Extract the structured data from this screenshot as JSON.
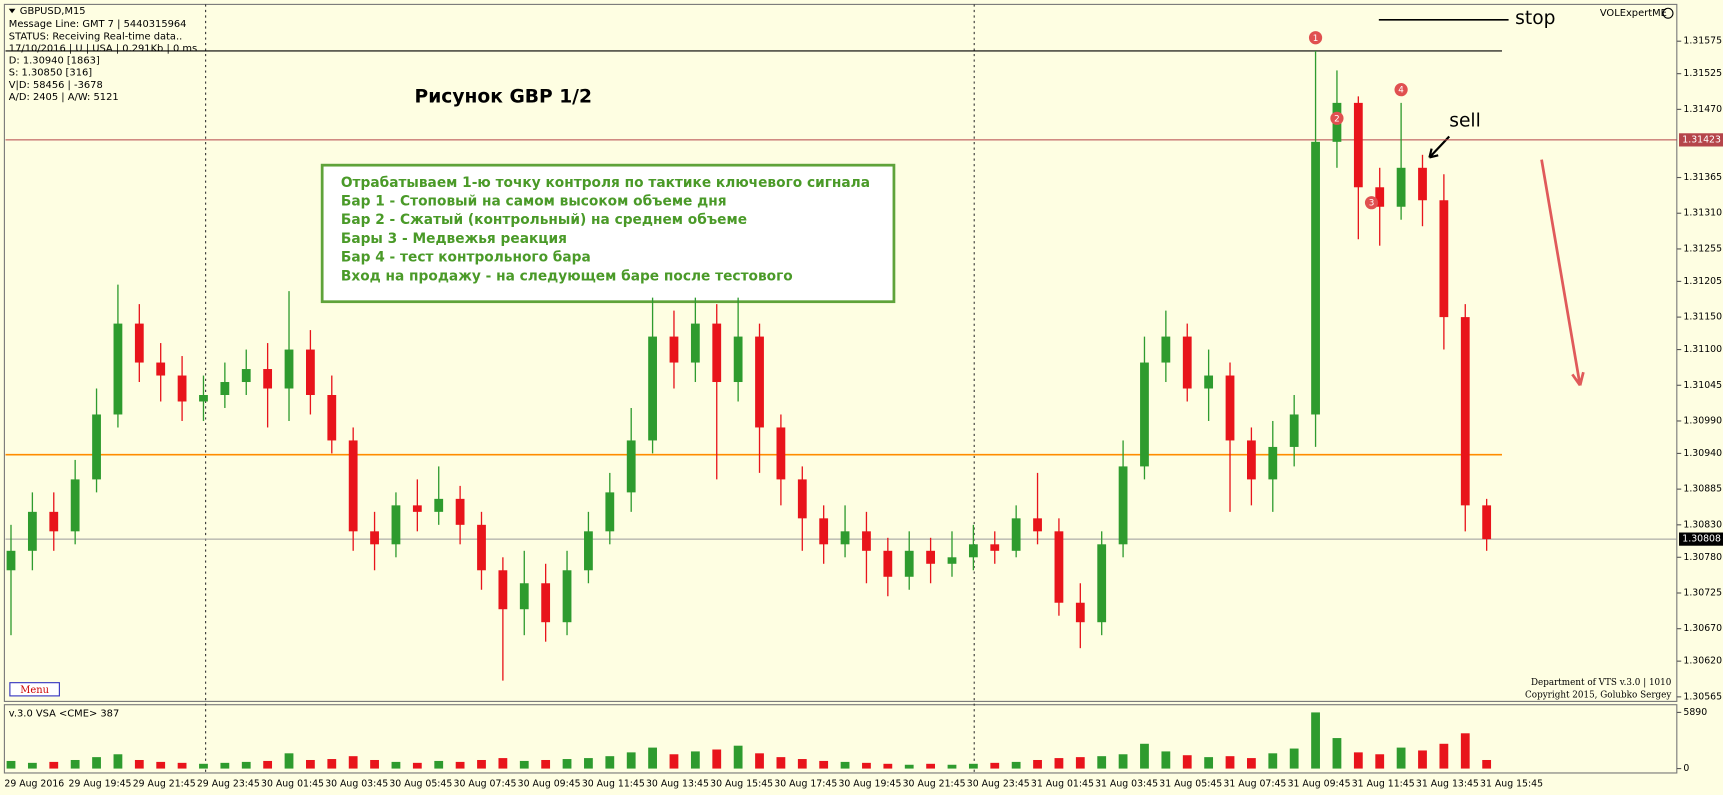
{
  "header": {
    "symbol": "GBPUSD,M15",
    "lines": [
      "Message Line: GMT 7 | 5440315964",
      "STATUS:  Receiving Real-time data..",
      "17/10/2016 | U | USA | 0.291Kb | 0 ms",
      "D: 1.30940  [1863]",
      "S: 1.30850  [316]",
      "V|D: 58456 | -3678",
      "A/D: 2405 | A/W: 5121"
    ]
  },
  "brand": "VOLExpertME",
  "annotations": {
    "title": "Рисунок GBP  1/2",
    "note": [
      "Отрабатываем 1-ю точку контроля по тактике ключевого сигнала",
      "Бар 1 - Стоповый на самом высоком объеме дня",
      "Бар 2 - Сжатый (контрольный) на среднем объеме",
      "Бары 3 - Медвежья реакция",
      "Бар 4 - тест контрольного бара",
      "Вход на продажу - на следующем баре после тестового"
    ],
    "stop": "stop",
    "sell": "sell",
    "markers": [
      "1",
      "2",
      "3",
      "4"
    ]
  },
  "footer": {
    "menu": "Menu",
    "credits": [
      "Department of VTS  v.3.0 | 1010",
      "Copyright 2015, Golubko Sergey"
    ]
  },
  "chart_data": {
    "type": "candlestick",
    "categories": [
      "29 Aug 2016",
      null,
      null,
      "29 Aug 19:45",
      null,
      null,
      "29 Aug 21:45",
      null,
      null,
      "29 Aug 23:45",
      null,
      null,
      "30 Aug 01:45",
      null,
      null,
      "30 Aug 03:45",
      null,
      null,
      "30 Aug 05:45",
      null,
      null,
      "30 Aug 07:45",
      null,
      null,
      "30 Aug 09:45",
      null,
      null,
      "30 Aug 11:45",
      null,
      null,
      "30 Aug 13:45",
      null,
      null,
      "30 Aug 15:45",
      null,
      null,
      "30 Aug 17:45",
      null,
      null,
      "30 Aug 19:45",
      null,
      null,
      "30 Aug 21:45",
      null,
      null,
      "30 Aug 23:45",
      null,
      null,
      "31 Aug 01:45",
      null,
      null,
      "31 Aug 03:45",
      null,
      null,
      "31 Aug 05:45",
      null,
      null,
      "31 Aug 07:45",
      null,
      null,
      "31 Aug 09:45",
      null,
      null,
      "31 Aug 11:45",
      null,
      null,
      "31 Aug 13:45",
      null,
      null,
      "31 Aug 15:45"
    ],
    "candles": {
      "open": [
        1.3076,
        1.3079,
        1.3085,
        1.3082,
        1.309,
        1.31,
        1.3114,
        1.3108,
        1.3106,
        1.3102,
        1.3103,
        1.3105,
        1.3107,
        1.3104,
        1.311,
        1.3103,
        1.3096,
        1.3082,
        1.308,
        1.3086,
        1.3085,
        1.3087,
        1.3083,
        1.3076,
        1.307,
        1.3074,
        1.3068,
        1.3076,
        1.3082,
        1.3088,
        1.3096,
        1.3112,
        1.3108,
        1.3114,
        1.3105,
        1.3112,
        1.3098,
        1.309,
        1.3084,
        1.308,
        1.3082,
        1.3079,
        1.3075,
        1.3079,
        1.3077,
        1.3078,
        1.308,
        1.3079,
        1.3084,
        1.3082,
        1.3071,
        1.3068,
        1.308,
        1.3092,
        1.3108,
        1.3112,
        1.3104,
        1.3106,
        1.3096,
        1.309,
        1.3095,
        1.31,
        1.3142,
        1.3148,
        1.3135,
        1.3132,
        1.3138,
        1.3133,
        1.3115,
        1.3086
      ],
      "high": [
        1.3083,
        1.3088,
        1.3088,
        1.3093,
        1.3104,
        1.312,
        1.3117,
        1.3111,
        1.3109,
        1.3106,
        1.3108,
        1.311,
        1.3111,
        1.3119,
        1.3113,
        1.3106,
        1.3098,
        1.3085,
        1.3088,
        1.309,
        1.3092,
        1.3089,
        1.3085,
        1.3078,
        1.3079,
        1.3077,
        1.3079,
        1.3085,
        1.3091,
        1.3101,
        1.3118,
        1.3116,
        1.3118,
        1.3117,
        1.3118,
        1.3114,
        1.31,
        1.3092,
        1.3086,
        1.3086,
        1.3085,
        1.3081,
        1.3082,
        1.3081,
        1.3082,
        1.3083,
        1.3082,
        1.3086,
        1.3091,
        1.3084,
        1.3074,
        1.3082,
        1.3096,
        1.3112,
        1.3116,
        1.3114,
        1.311,
        1.3108,
        1.3098,
        1.3099,
        1.3103,
        1.3156,
        1.3153,
        1.3149,
        1.3138,
        1.3148,
        1.314,
        1.3137,
        1.3117,
        1.3087
      ],
      "low": [
        1.3066,
        1.3076,
        1.3079,
        1.308,
        1.3088,
        1.3098,
        1.3105,
        1.3102,
        1.3099,
        1.3099,
        1.3101,
        1.3103,
        1.3098,
        1.3099,
        1.31,
        1.3094,
        1.3079,
        1.3076,
        1.3078,
        1.3082,
        1.3083,
        1.308,
        1.3073,
        1.3059,
        1.3066,
        1.3065,
        1.3066,
        1.3074,
        1.308,
        1.3085,
        1.3094,
        1.3104,
        1.3105,
        1.309,
        1.3102,
        1.3091,
        1.3086,
        1.3079,
        1.3077,
        1.3078,
        1.3074,
        1.3072,
        1.3073,
        1.3074,
        1.3075,
        1.3076,
        1.3077,
        1.3078,
        1.308,
        1.3069,
        1.3064,
        1.3066,
        1.3078,
        1.309,
        1.3105,
        1.3102,
        1.3099,
        1.3085,
        1.3086,
        1.3085,
        1.3092,
        1.3095,
        1.3138,
        1.3127,
        1.3126,
        1.313,
        1.3129,
        1.311,
        1.3082,
        1.3079
      ],
      "close": [
        1.3079,
        1.3085,
        1.3082,
        1.309,
        1.31,
        1.3114,
        1.3108,
        1.3106,
        1.3102,
        1.3103,
        1.3105,
        1.3107,
        1.3104,
        1.311,
        1.3103,
        1.3096,
        1.3082,
        1.308,
        1.3086,
        1.3085,
        1.3087,
        1.3083,
        1.3076,
        1.307,
        1.3074,
        1.3068,
        1.3076,
        1.3082,
        1.3088,
        1.3096,
        1.3112,
        1.3108,
        1.3114,
        1.3105,
        1.3112,
        1.3098,
        1.309,
        1.3084,
        1.308,
        1.3082,
        1.3079,
        1.3075,
        1.3079,
        1.3077,
        1.3078,
        1.308,
        1.3079,
        1.3084,
        1.3082,
        1.3071,
        1.3068,
        1.308,
        1.3092,
        1.3108,
        1.3112,
        1.3104,
        1.3106,
        1.3096,
        1.309,
        1.3095,
        1.31,
        1.3142,
        1.3148,
        1.3135,
        1.3132,
        1.3138,
        1.3133,
        1.3115,
        1.3086,
        1.30808
      ]
    },
    "up_color": "#2e9b2e",
    "down_color": "#e8141b",
    "ylim": [
      1.30558,
      1.3163
    ],
    "yticks": [
      1.31575,
      1.31525,
      {
        "value": 1.3147,
        "label": "1.31470"
      },
      1.31365,
      {
        "value": 1.3131,
        "label": "1.31310"
      },
      1.31255,
      1.31205,
      {
        "value": 1.3115,
        "label": "1.31150"
      },
      {
        "value": 1.311,
        "label": "1.31100"
      },
      1.31045,
      {
        "value": 1.3099,
        "label": "1.30990"
      },
      {
        "value": 1.3094,
        "label": "1.30940"
      },
      1.30885,
      {
        "value": 1.3083,
        "label": "1.30830"
      },
      {
        "value": 1.3078,
        "label": "1.30780"
      },
      1.30725,
      {
        "value": 1.3067,
        "label": "1.30670"
      },
      {
        "value": 1.3062,
        "label": "1.30620"
      },
      1.30565
    ],
    "levels": [
      {
        "value": 1.3156,
        "color": "#000000",
        "tagged": false
      },
      {
        "value": 1.31423,
        "color": "#b5454a",
        "tagged": true
      },
      {
        "value": 1.30938,
        "color": "#ff8c00",
        "tagged": false
      },
      {
        "value": 1.30808,
        "color": "#9a9a9a",
        "tagged": true
      }
    ],
    "volume": {
      "label": "v.3.0 VSA <CME> 387",
      "ylim": [
        0,
        5890
      ],
      "yticks": [
        5890,
        0
      ],
      "values": [
        800,
        600,
        700,
        900,
        1200,
        1500,
        900,
        700,
        600,
        500,
        600,
        700,
        800,
        1600,
        900,
        1000,
        1300,
        900,
        700,
        600,
        800,
        700,
        900,
        1100,
        800,
        900,
        1000,
        1100,
        1300,
        1700,
        2200,
        1500,
        1800,
        2000,
        2400,
        1600,
        1200,
        1000,
        800,
        700,
        600,
        500,
        400,
        500,
        400,
        500,
        600,
        700,
        900,
        1100,
        1200,
        1300,
        1500,
        2600,
        1800,
        1400,
        1200,
        1300,
        1100,
        1600,
        2100,
        5890,
        3200,
        1700,
        1500,
        2200,
        1900,
        2600,
        3700,
        900
      ]
    }
  }
}
